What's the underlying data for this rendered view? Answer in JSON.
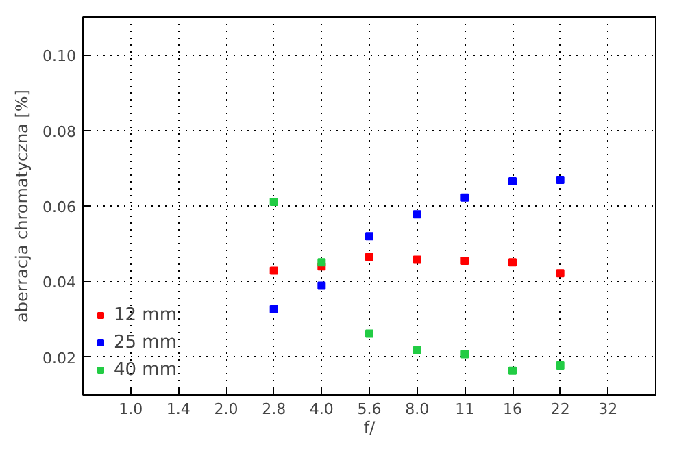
{
  "chart_data": {
    "type": "scatter",
    "xlabel": "f/",
    "ylabel": "aberracja chromatyczna [%]",
    "categories": [
      "1.0",
      "1.4",
      "2.0",
      "2.8",
      "4.0",
      "5.6",
      "8.0",
      "11",
      "16",
      "22",
      "32"
    ],
    "ylim": [
      0.01,
      0.11
    ],
    "yticks": [
      {
        "value": 0.02,
        "label": "0.02"
      },
      {
        "value": 0.04,
        "label": "0.04"
      },
      {
        "value": 0.06,
        "label": "0.06"
      },
      {
        "value": 0.08,
        "label": "0.08"
      },
      {
        "value": 0.1,
        "label": "0.10"
      }
    ],
    "grid": true,
    "legend": "bottom left",
    "marker": "square",
    "series": [
      {
        "name": "12 mm",
        "color": "#ff0000",
        "values": [
          null,
          null,
          null,
          0.0429,
          0.044,
          0.0465,
          0.0458,
          0.0455,
          0.0451,
          0.0422,
          null
        ]
      },
      {
        "name": "25 mm",
        "color": "#0000ff",
        "values": [
          null,
          null,
          null,
          0.0327,
          0.0389,
          0.052,
          0.0578,
          0.0622,
          0.0665,
          0.0669,
          null
        ]
      },
      {
        "name": "40 mm",
        "color": "#22cc44",
        "values": [
          null,
          null,
          null,
          0.0611,
          0.0451,
          0.0262,
          0.0218,
          0.0208,
          0.0164,
          0.0178,
          null
        ]
      }
    ]
  }
}
